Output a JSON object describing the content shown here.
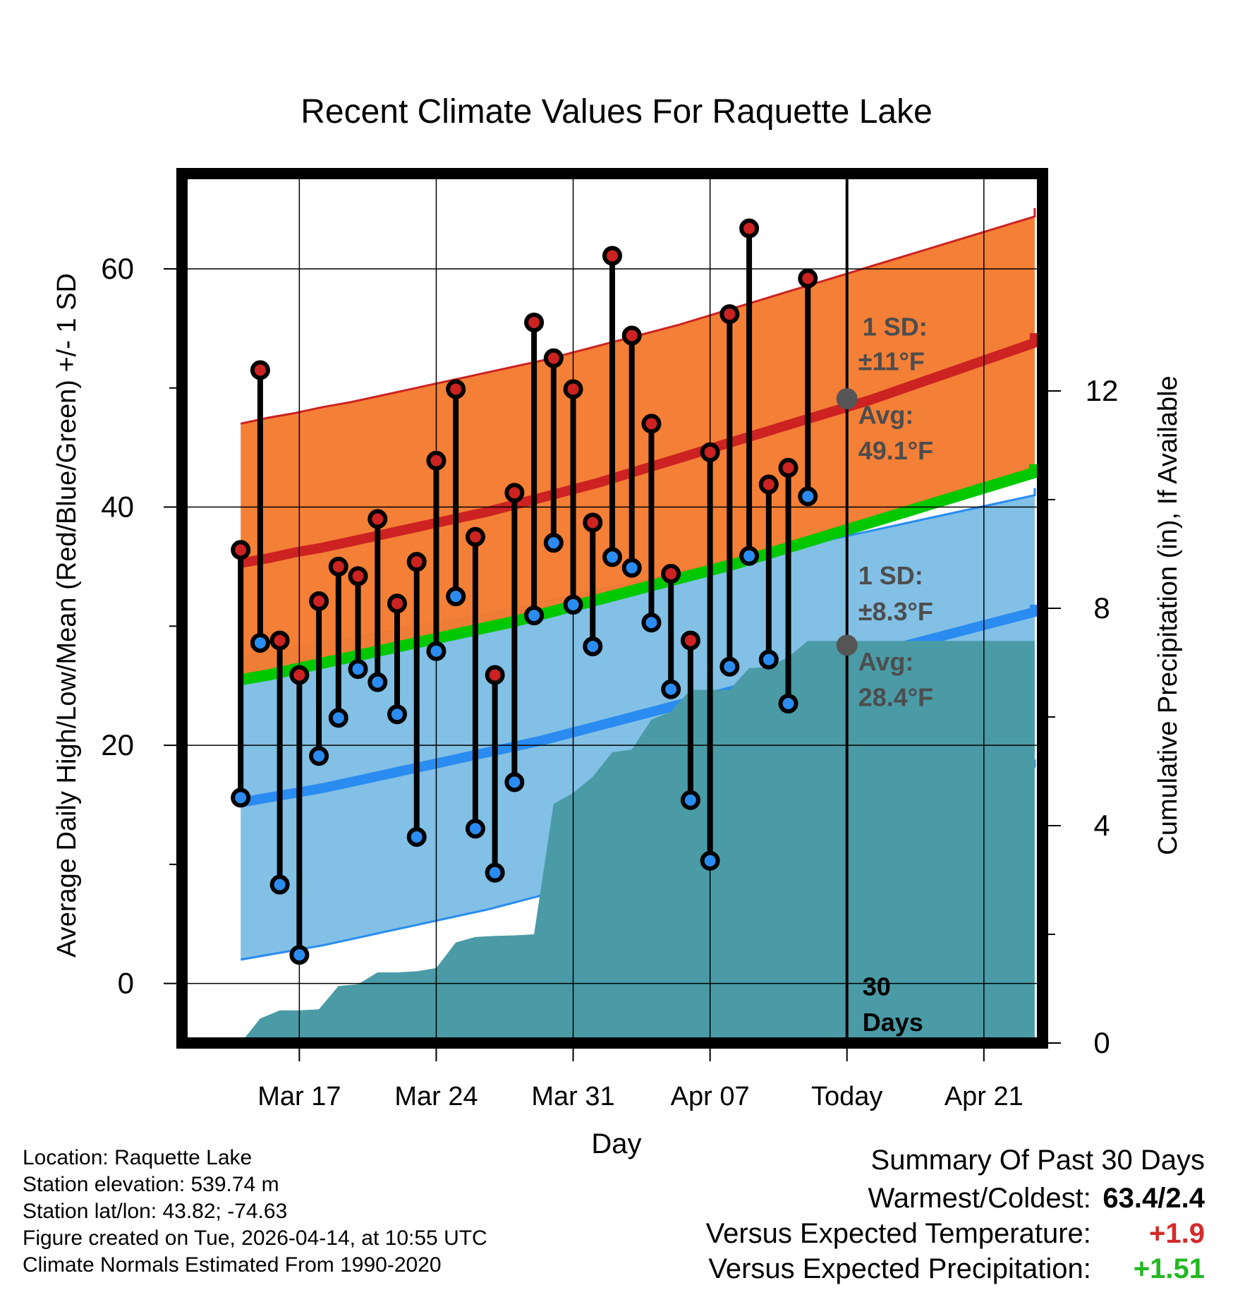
{
  "chart_data": {
    "type": "line",
    "title": "Recent Climate Values For Raquette Lake",
    "xlabel": "Day",
    "ylabel_left": "Average Daily High/Low/Mean (Red/Blue/Green) +/- 1 SD",
    "ylabel_right": "Cumulative Precipitation (in), If Available",
    "x_tick_labels": [
      "Mar 17",
      "Mar 24",
      "Mar 31",
      "Apr 07",
      "Today",
      "Apr 21"
    ],
    "x_tick_days": [
      3,
      10,
      17,
      24,
      31,
      38
    ],
    "xlim": [
      -3,
      41
    ],
    "ylim_temp": [
      -5,
      68
    ],
    "yticks_temp": [
      0,
      20,
      40,
      60
    ],
    "ylim_precip": [
      0,
      16
    ],
    "yticks_precip": [
      0,
      4,
      8,
      12
    ],
    "today_day": 31,
    "today_label": "30 Days",
    "days": [
      0,
      1,
      2,
      3,
      4,
      5,
      6,
      7,
      8,
      9,
      10,
      11,
      12,
      13,
      14,
      15,
      16,
      17,
      18,
      19,
      20,
      21,
      22,
      23,
      24,
      25,
      26,
      27,
      28,
      29,
      30
    ],
    "series": [
      {
        "name": "Daily High",
        "color": "#cc2222",
        "values": [
          36.4,
          51.5,
          28.8,
          25.9,
          32.1,
          35.0,
          34.2,
          39.0,
          31.9,
          35.4,
          43.9,
          49.9,
          37.5,
          25.9,
          41.2,
          55.5,
          52.5,
          49.9,
          38.7,
          61.1,
          54.4,
          47.0,
          34.4,
          28.8,
          44.6,
          56.2,
          63.4,
          41.9,
          43.3,
          59.2,
          null
        ]
      },
      {
        "name": "Daily Low",
        "color": "#2a8cf0",
        "values": [
          15.6,
          28.6,
          8.3,
          2.4,
          19.1,
          22.3,
          26.4,
          25.3,
          22.6,
          12.3,
          27.9,
          32.5,
          13.0,
          9.3,
          16.9,
          30.9,
          37.0,
          31.8,
          28.3,
          35.8,
          34.9,
          30.3,
          24.7,
          15.4,
          10.3,
          26.6,
          35.9,
          27.2,
          23.5,
          40.9,
          null
        ]
      },
      {
        "name": "Normal High",
        "color": "#cc2222",
        "values": [
          35.3,
          35.7,
          36.2,
          36.6,
          37.1,
          37.6,
          38.1,
          38.6,
          39.1,
          39.6,
          40.2,
          40.8,
          41.4,
          42.0,
          42.7,
          43.4,
          44.1,
          44.8,
          45.5,
          46.2,
          46.9,
          47.6,
          48.3,
          49.0,
          49.8,
          50.6,
          51.4,
          52.2,
          53.0,
          53.8,
          54.6
        ]
      },
      {
        "name": "Normal Mean",
        "color": "#00c800",
        "values": [
          25.5,
          25.9,
          26.4,
          26.9,
          27.4,
          27.9,
          28.4,
          28.9,
          29.4,
          29.9,
          30.4,
          31.0,
          31.6,
          32.2,
          32.8,
          33.4,
          34.0,
          34.6,
          35.2,
          35.9,
          36.6,
          37.3,
          38.0,
          38.7,
          39.4,
          40.1,
          40.8,
          41.5,
          42.2,
          42.9,
          43.6
        ]
      },
      {
        "name": "Normal Low",
        "color": "#2a8cf0",
        "values": [
          15.2,
          15.6,
          16.0,
          16.4,
          16.9,
          17.4,
          17.9,
          18.4,
          18.9,
          19.4,
          19.9,
          20.4,
          21.0,
          21.6,
          22.2,
          22.8,
          23.4,
          24.0,
          24.6,
          25.2,
          25.8,
          26.4,
          27.0,
          27.6,
          28.2,
          28.8,
          29.4,
          30.0,
          30.6,
          31.2,
          31.8
        ]
      }
    ],
    "normal_bands": {
      "high_plus_sd": [
        47.0,
        47.5,
        47.9,
        48.4,
        48.8,
        49.3,
        49.8,
        50.3,
        50.8,
        51.3,
        51.8,
        52.3,
        52.9,
        53.5,
        54.1,
        54.7,
        55.3,
        56.0,
        56.7,
        57.4,
        58.1,
        58.8,
        59.5,
        60.2,
        60.9,
        61.6,
        62.3,
        63.0,
        63.7,
        64.4,
        65.1
      ],
      "high_minus_sd": [
        25.4,
        25.8,
        26.3,
        26.7,
        27.2,
        27.7,
        28.2,
        28.7,
        29.2,
        29.7,
        30.2,
        30.7,
        31.3,
        31.9,
        32.5,
        33.1,
        33.7,
        34.3,
        35.0,
        35.7,
        36.4,
        37.1,
        37.8,
        38.5,
        39.2,
        39.9,
        40.6,
        41.3,
        42.0,
        42.7,
        43.4
      ],
      "low_plus_sd": [
        27.4,
        27.8,
        28.2,
        28.6,
        29.0,
        29.4,
        29.8,
        30.2,
        30.6,
        31.0,
        31.5,
        32.0,
        32.5,
        33.0,
        33.5,
        34.0,
        34.5,
        35.0,
        35.5,
        36.0,
        36.5,
        37.0,
        37.5,
        38.0,
        38.5,
        39.0,
        39.5,
        40.0,
        40.5,
        41.0,
        41.6
      ],
      "low_minus_sd": [
        2.0,
        2.4,
        2.8,
        3.2,
        3.7,
        4.2,
        4.7,
        5.2,
        5.7,
        6.2,
        6.8,
        7.4,
        8.0,
        8.6,
        9.2,
        9.8,
        10.4,
        11.0,
        11.6,
        12.2,
        12.8,
        13.4,
        14.0,
        14.6,
        15.2,
        15.8,
        16.4,
        17.0,
        17.6,
        18.2,
        18.8
      ],
      "days": [
        0,
        1.4,
        2.8,
        4.2,
        5.6,
        7.0,
        8.4,
        9.8,
        11.2,
        12.6,
        14.0,
        15.4,
        16.8,
        18.2,
        19.6,
        21.0,
        22.4,
        23.8,
        25.2,
        26.6,
        28.0,
        29.4,
        30.8,
        32.2,
        33.6,
        35.0,
        36.4,
        37.8,
        39.2,
        40.6,
        40.6
      ]
    },
    "precip": {
      "name": "Cumulative Precipitation",
      "color": "#4a9ba6",
      "days": [
        0,
        1,
        2,
        3,
        4,
        5,
        6,
        7,
        8,
        9,
        10,
        11,
        12,
        13,
        14,
        15,
        16,
        17,
        18,
        19,
        20,
        21,
        22,
        23,
        24,
        25,
        26,
        27,
        28,
        29,
        30,
        40.6
      ],
      "values": [
        0.0,
        0.45,
        0.6,
        0.6,
        0.62,
        1.05,
        1.08,
        1.3,
        1.3,
        1.32,
        1.38,
        1.85,
        1.95,
        1.97,
        1.98,
        2.0,
        4.4,
        4.6,
        4.9,
        5.35,
        5.4,
        5.95,
        6.1,
        6.5,
        6.5,
        6.5,
        6.9,
        6.92,
        7.1,
        7.4,
        7.4,
        7.4
      ]
    },
    "annotations": {
      "high_sd_label": "1 SD:",
      "high_sd_value": "±11°F",
      "high_avg_label": "Avg:",
      "high_avg_value": "49.1°F",
      "low_sd_label": "1 SD:",
      "low_sd_value": "±8.3°F",
      "low_avg_label": "Avg:",
      "low_avg_value": "28.4°F",
      "today_high_avg": 49.1,
      "today_low_avg": 28.4
    }
  },
  "meta": {
    "location": "Location: Raquette Lake",
    "elevation": "Station elevation: 539.74 m",
    "latlon": "Station lat/lon: 43.82; -74.63",
    "created": "Figure created on Tue, 2026-04-14, at 10:55 UTC",
    "normals": "Climate Normals Estimated From 1990-2020"
  },
  "summary": {
    "title": "Summary Of Past 30 Days",
    "warmest_label": "Warmest/Coldest:",
    "warmest_value": "63.4/2.4",
    "temp_label": "Versus Expected Temperature:",
    "temp_value": "+1.9",
    "temp_color": "#d42a2a",
    "precip_label": "Versus Expected Precipitation:",
    "precip_value": "+1.51",
    "precip_color": "#22b822"
  },
  "colors": {
    "high_band": "#f47b30",
    "low_band": "#82c0e6",
    "high_line": "#cc2222",
    "low_line": "#2a8cf0",
    "mean_line": "#00c800",
    "precip": "#4a9ba6",
    "annotation": "#4d4d4d"
  }
}
